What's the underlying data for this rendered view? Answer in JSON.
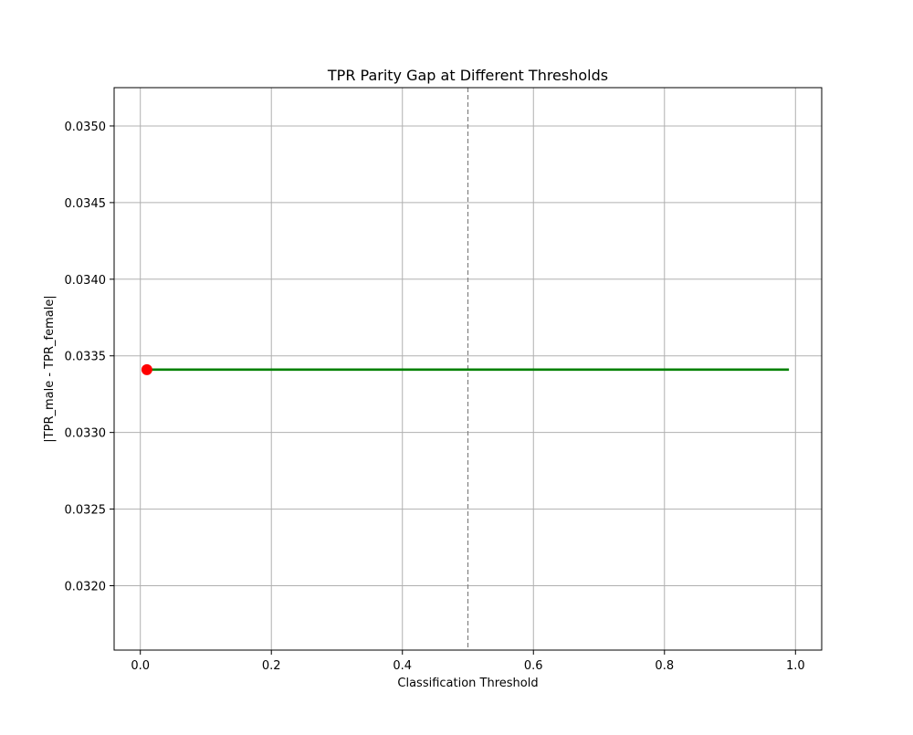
{
  "chart_data": {
    "type": "line",
    "title": "TPR Parity Gap at Different Thresholds",
    "xlabel": "Classification Threshold",
    "ylabel": "|TPR_male - TPR_female|",
    "xlim": [
      -0.04,
      1.04
    ],
    "ylim": [
      0.03158,
      0.03525
    ],
    "x_ticks": [
      0.0,
      0.2,
      0.4,
      0.6,
      0.8,
      1.0
    ],
    "x_tick_labels": [
      "0.0",
      "0.2",
      "0.4",
      "0.6",
      "0.8",
      "1.0"
    ],
    "y_ticks": [
      0.032,
      0.0325,
      0.033,
      0.0335,
      0.034,
      0.0345,
      0.035
    ],
    "y_tick_labels": [
      "0.0320",
      "0.0325",
      "0.0330",
      "0.0335",
      "0.0340",
      "0.0345",
      "0.0350"
    ],
    "grid": true,
    "series": [
      {
        "color": "#008000",
        "x": [
          0.01,
          0.99
        ],
        "y": [
          0.03341,
          0.03341
        ]
      }
    ],
    "highlight_point": {
      "x": 0.01,
      "y": 0.03341,
      "color": "#ff0000"
    },
    "reference_line": {
      "x": 0.5,
      "style": "dashed",
      "color": "#808080"
    }
  }
}
